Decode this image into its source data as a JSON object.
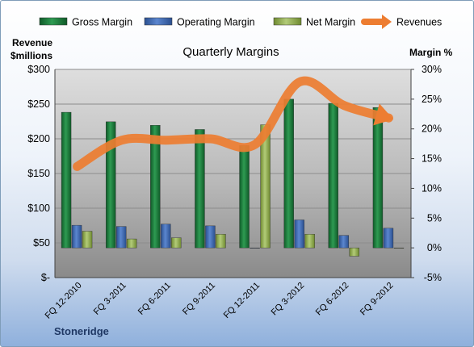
{
  "chart_data": {
    "type": "bar",
    "title": "Quarterly Margins",
    "company": "Stoneridge",
    "categories": [
      "FQ 12-2010",
      "FQ 3-2011",
      "FQ 6-2011",
      "FQ 9-2011",
      "FQ 12-2011",
      "FQ 3-2012",
      "FQ 6-2012",
      "FQ 9-2012"
    ],
    "left_axis": {
      "label_line1": "Revenue",
      "label_line2": "$millions",
      "min": 0,
      "max": 300,
      "step": 50,
      "tick_labels": [
        "$-",
        "$50",
        "$100",
        "$150",
        "$200",
        "$250",
        "$300"
      ]
    },
    "right_axis": {
      "label": "Margin %",
      "min": -5,
      "max": 30,
      "step": 5,
      "tick_labels": [
        "-5%",
        "0%",
        "5%",
        "10%",
        "15%",
        "20%",
        "25%",
        "30%"
      ]
    },
    "series": [
      {
        "name": "Gross Margin",
        "kind": "bar",
        "axis": "right",
        "color": "#1a7a3a",
        "values": [
          22.8,
          21.2,
          20.6,
          19.9,
          17.2,
          25.0,
          24.3,
          23.6
        ]
      },
      {
        "name": "Operating Margin",
        "kind": "bar",
        "axis": "right",
        "color": "#4472c4",
        "values": [
          3.8,
          3.6,
          4.0,
          3.7,
          0.0,
          4.7,
          2.1,
          3.3
        ]
      },
      {
        "name": "Net Margin",
        "kind": "bar",
        "axis": "right",
        "color": "#9bbb59",
        "values": [
          2.8,
          1.5,
          1.7,
          2.3,
          20.7,
          2.3,
          -1.4,
          0.0
        ]
      },
      {
        "name": "Revenues",
        "kind": "line",
        "axis": "left",
        "color": "#ed7d31",
        "values": [
          160,
          198,
          198,
          200,
          192,
          282,
          248,
          230
        ]
      }
    ],
    "grid": true,
    "legend_position": "top"
  }
}
